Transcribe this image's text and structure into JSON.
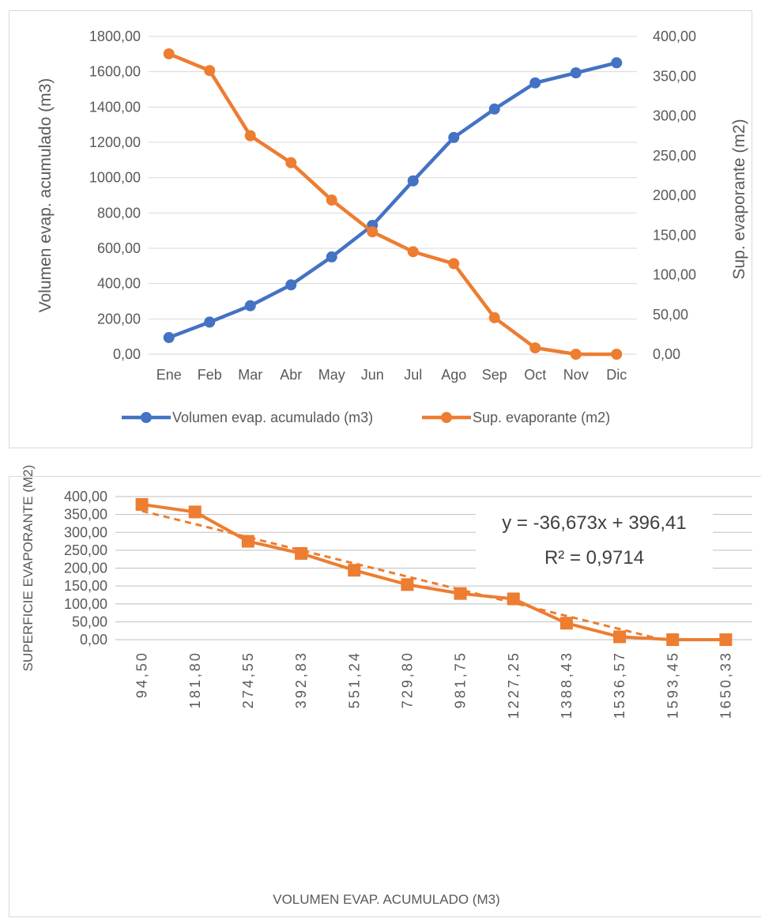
{
  "chart_data": [
    {
      "type": "line",
      "categories": [
        "Ene",
        "Feb",
        "Mar",
        "Abr",
        "May",
        "Jun",
        "Jul",
        "Ago",
        "Sep",
        "Oct",
        "Nov",
        "Dic"
      ],
      "series": [
        {
          "name": "Volumen evap. acumulado (m3)",
          "axis": "left",
          "color": "#4472C4",
          "values": [
            94.5,
            181.8,
            274.55,
            392.83,
            551.24,
            729.8,
            981.75,
            1227.25,
            1388.43,
            1536.57,
            1593.45,
            1650.33
          ]
        },
        {
          "name": "Sup. evaporante (m2)",
          "axis": "right",
          "color": "#ED7D31",
          "values": [
            378,
            357,
            275,
            241,
            194,
            154,
            129,
            114,
            46,
            8,
            0,
            0
          ]
        }
      ],
      "ylabel": "Volumen  evap. acumulado (m3)",
      "y2label": "Sup. evaporante (m2)",
      "ylim": [
        0,
        1800
      ],
      "y2lim": [
        0,
        400
      ],
      "yticks": [
        "0,00",
        "200,00",
        "400,00",
        "600,00",
        "800,00",
        "1000,00",
        "1200,00",
        "1400,00",
        "1600,00",
        "1800,00"
      ],
      "y2ticks": [
        "0,00",
        "50,00",
        "100,00",
        "150,00",
        "200,00",
        "250,00",
        "300,00",
        "350,00",
        "400,00"
      ],
      "grid": true,
      "legend_position": "bottom"
    },
    {
      "type": "line",
      "categories": [
        "94,50",
        "181,80",
        "274,55",
        "392,83",
        "551,24",
        "729,80",
        "981,75",
        "1227,25",
        "1388,43",
        "1536,57",
        "1593,45",
        "1650,33"
      ],
      "series": [
        {
          "color": "#ED7D31",
          "marker": "square",
          "values": [
            378,
            357,
            275,
            241,
            194,
            154,
            129,
            114,
            46,
            8,
            0,
            0
          ]
        }
      ],
      "trendline": {
        "type": "linear",
        "slope": -36.673,
        "intercept": 396.41,
        "equation": "y = -36,673x + 396,41",
        "r_squared": "R² = 0,9714",
        "style": "dashed"
      },
      "xlabel": "VOLUMEN EVAP. ACUMULADO (M3)",
      "ylabel": "SUPERFICIE EVAPORANTE (M2)",
      "ylim": [
        0,
        400
      ],
      "yticks": [
        "0,00",
        "50,00",
        "100,00",
        "150,00",
        "200,00",
        "250,00",
        "300,00",
        "350,00",
        "400,00"
      ],
      "grid": true
    }
  ]
}
